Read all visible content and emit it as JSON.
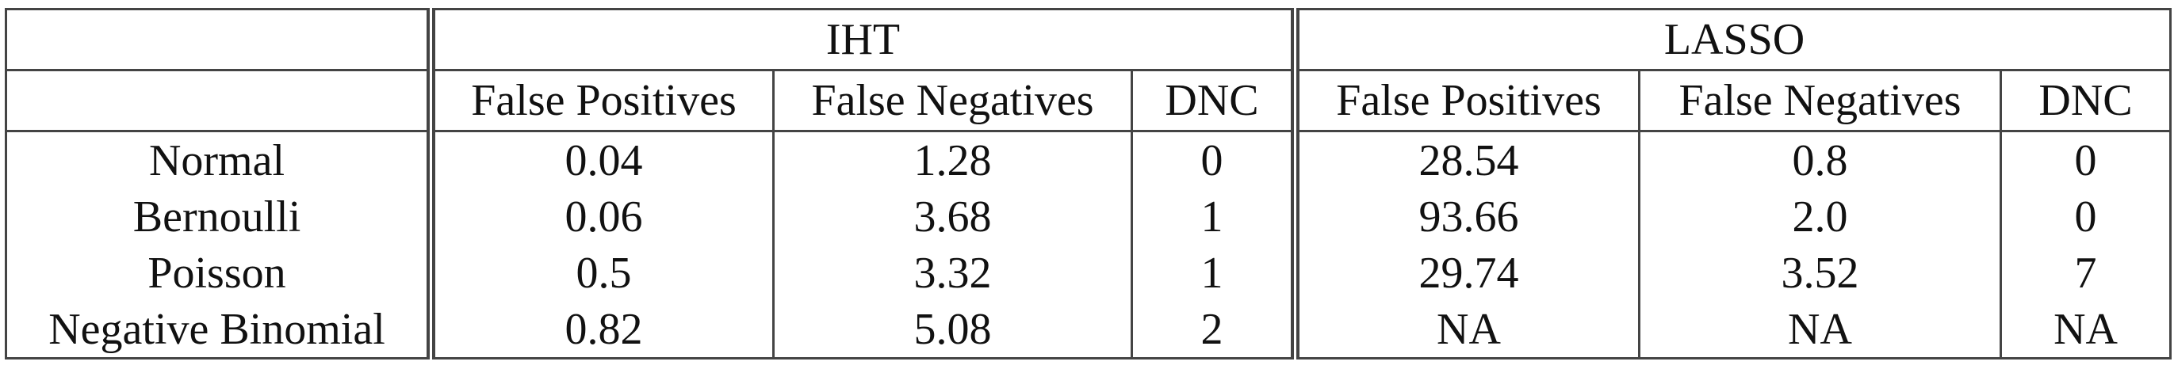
{
  "table": {
    "groups": [
      "IHT",
      "LASSO"
    ],
    "columns": [
      "False Positives",
      "False Negatives",
      "DNC",
      "False Positives",
      "False Negatives",
      "DNC"
    ],
    "rows": [
      {
        "label": "Normal",
        "values": [
          "0.04",
          "1.28",
          "0",
          "28.54",
          "0.8",
          "0"
        ]
      },
      {
        "label": "Bernoulli",
        "values": [
          "0.06",
          "3.68",
          "1",
          "93.66",
          "2.0",
          "0"
        ]
      },
      {
        "label": "Poisson",
        "values": [
          "0.5",
          "3.32",
          "1",
          "29.74",
          "3.52",
          "7"
        ]
      },
      {
        "label": "Negative Binomial",
        "values": [
          "0.82",
          "5.08",
          "2",
          "NA",
          "NA",
          "NA"
        ]
      }
    ]
  }
}
